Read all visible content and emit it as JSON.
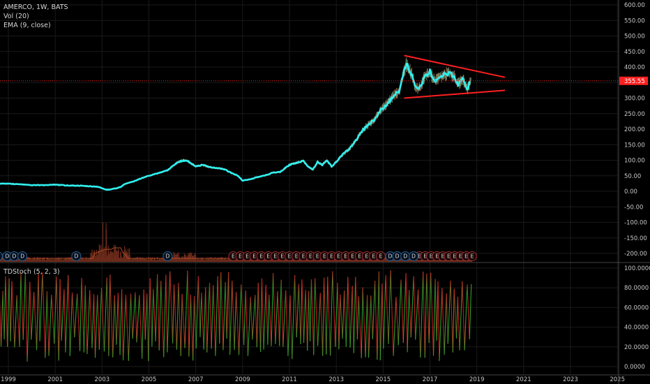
{
  "main_legend": {
    "symbol_line": "AMERCO, 1W, BATS",
    "volume_line": "Vol (20)",
    "ema_line": "EMA (9, close)"
  },
  "sub_legend": "TDStoch (5, 2, 3)",
  "last_price_label": "355.55",
  "colors": {
    "ema": "#30f0f0",
    "trendline": "#ff2020",
    "last_price": "#ff2020",
    "stoch_up": "#2aa02a",
    "stoch_down": "#c02020",
    "volume": "#6b2a1a",
    "dividend_circle": "#2a5f8f",
    "earnings_circle": "#9a2f2f"
  },
  "chart_data": [
    {
      "type": "line",
      "name": "AMERCO weekly price with EMA (9, close)",
      "x_unit": "year",
      "ylim": [
        -220,
        600
      ],
      "y_ticks": [
        "600.00",
        "550.00",
        "500.00",
        "450.00",
        "400.00",
        "350.00",
        "300.00",
        "250.00",
        "200.00",
        "150.00",
        "100.00",
        "50.00",
        "0.00",
        "-50.00",
        "-100.00",
        "-150.00",
        "-200.00"
      ],
      "x_ticks": [
        "1999",
        "2001",
        "2003",
        "2005",
        "2007",
        "2009",
        "2011",
        "2013",
        "2015",
        "2017",
        "2019",
        "2021",
        "2023",
        "2025"
      ],
      "ema_series": {
        "x": [
          1998.4,
          1999,
          1999.5,
          2000,
          2000.5,
          2001,
          2001.5,
          2002,
          2002.5,
          2002.8,
          2003,
          2003.2,
          2003.5,
          2003.8,
          2004,
          2004.3,
          2004.6,
          2005,
          2005.4,
          2005.8,
          2006,
          2006.2,
          2006.4,
          2006.6,
          2006.8,
          2007,
          2007.3,
          2007.6,
          2007.9,
          2008.2,
          2008.5,
          2008.8,
          2009,
          2009.3,
          2009.6,
          2010,
          2010.3,
          2010.6,
          2011,
          2011.3,
          2011.6,
          2011.8,
          2012,
          2012.2,
          2012.4,
          2012.6,
          2012.8,
          2013,
          2013.3,
          2013.6,
          2013.9,
          2014,
          2014.3,
          2014.6,
          2014.9,
          2015.2,
          2015.5,
          2015.7,
          2015.85,
          2016,
          2016.2,
          2016.4,
          2016.6,
          2016.8,
          2017,
          2017.2,
          2017.4,
          2017.6,
          2017.8,
          2018,
          2018.2,
          2018.4,
          2018.6,
          2018.75
        ],
        "y": [
          25,
          24,
          23,
          20,
          20,
          21,
          19,
          18,
          16,
          15,
          10,
          5,
          8,
          14,
          25,
          30,
          40,
          50,
          58,
          68,
          80,
          92,
          98,
          100,
          90,
          80,
          85,
          78,
          75,
          72,
          60,
          50,
          35,
          38,
          45,
          52,
          60,
          62,
          85,
          92,
          98,
          80,
          70,
          95,
          85,
          100,
          80,
          95,
          120,
          140,
          170,
          185,
          210,
          230,
          260,
          285,
          310,
          320,
          375,
          410,
          380,
          330,
          340,
          370,
          385,
          355,
          370,
          375,
          380,
          372,
          345,
          360,
          330,
          358
        ]
      },
      "trendlines": [
        {
          "x": [
            2015.9,
            2020.2
          ],
          "y": [
            437,
            367
          ]
        },
        {
          "x": [
            2015.9,
            2020.2
          ],
          "y": [
            300,
            325
          ]
        }
      ],
      "last_price": 355.55
    },
    {
      "type": "bar",
      "name": "Vol (20)",
      "note": "volume bars at bottom of price pane, scaled relative",
      "events_dividends_x": [
        1998.55,
        1998.95,
        1999.25,
        1999.6,
        2001.9,
        2005.8,
        2015.3,
        2015.6,
        2015.95,
        2016.3
      ],
      "events_earnings_x": [
        2008.6,
        2008.9,
        2009.2,
        2009.5,
        2009.8,
        2010.1,
        2010.4,
        2010.7,
        2011.0,
        2011.3,
        2011.6,
        2011.9,
        2012.2,
        2012.5,
        2012.8,
        2013.1,
        2013.4,
        2013.7,
        2014.0,
        2014.3,
        2014.6,
        2014.9,
        2016.55,
        2016.8,
        2017.05,
        2017.3,
        2017.55,
        2017.8,
        2018.05,
        2018.3,
        2018.55,
        2018.8
      ]
    },
    {
      "type": "line",
      "name": "TDStoch (5, 2, 3)",
      "ylim": [
        -5,
        102
      ],
      "y_ticks": [
        "100.0000",
        "80.0000",
        "60.0000",
        "40.0000",
        "20.0000",
        "0.0000"
      ],
      "note": "oscillator oscillating between ~5 and ~98 weekly, green rising / red falling segments"
    }
  ]
}
